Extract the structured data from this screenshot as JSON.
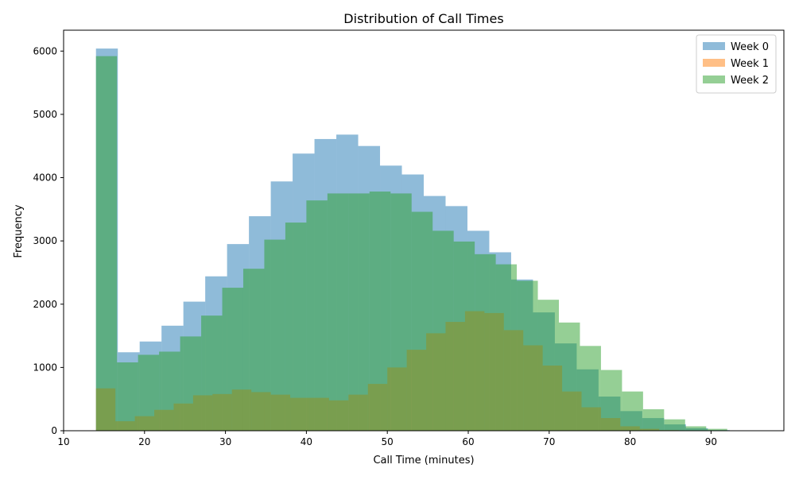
{
  "chart_data": {
    "type": "bar",
    "title": "Distribution of Call Times",
    "xlabel": "Call Time (minutes)",
    "ylabel": "Frequency",
    "xlim": [
      10,
      99
    ],
    "ylim": [
      0,
      6330
    ],
    "xticks": [
      10,
      20,
      30,
      40,
      50,
      60,
      70,
      80,
      90
    ],
    "yticks": [
      0,
      1000,
      2000,
      3000,
      4000,
      5000,
      6000
    ],
    "grid": false,
    "legend_position": "top-right",
    "series": [
      {
        "name": "Week 0",
        "color": "#1f77b4",
        "opacity": 0.5,
        "bin_edges": [
          14.0,
          16.7,
          19.4,
          22.1,
          24.8,
          27.5,
          30.2,
          32.9,
          35.6,
          38.3,
          41.0,
          43.7,
          46.4,
          49.1,
          51.8,
          54.5,
          57.2,
          59.9,
          62.6,
          65.3,
          68.0,
          70.7,
          73.4,
          76.1,
          78.8,
          81.5,
          84.2,
          86.9,
          89.6,
          92.3,
          95.0
        ],
        "values": [
          6040,
          1240,
          1410,
          1660,
          2040,
          2440,
          2950,
          3390,
          3940,
          4380,
          4610,
          4680,
          4500,
          4190,
          4050,
          3710,
          3550,
          3160,
          2820,
          2390,
          1870,
          1380,
          970,
          540,
          310,
          200,
          100,
          40,
          10,
          5
        ]
      },
      {
        "name": "Week 1",
        "color": "#ff7f0e",
        "opacity": 0.5,
        "bin_edges": [
          14.0,
          16.4,
          18.8,
          21.2,
          23.6,
          26.0,
          28.4,
          30.8,
          33.2,
          35.6,
          38.0,
          40.4,
          42.8,
          45.2,
          47.6,
          50.0,
          52.4,
          54.8,
          57.2,
          59.6,
          62.0,
          64.4,
          66.8,
          69.2,
          71.6,
          74.0,
          76.4,
          78.8,
          81.2,
          83.6,
          86.0
        ],
        "values": [
          670,
          150,
          230,
          330,
          430,
          560,
          580,
          650,
          610,
          570,
          520,
          520,
          480,
          570,
          740,
          1000,
          1280,
          1540,
          1720,
          1890,
          1860,
          1590,
          1350,
          1030,
          620,
          370,
          200,
          70,
          30,
          10
        ]
      },
      {
        "name": "Week 2",
        "color": "#2ca02c",
        "opacity": 0.5,
        "bin_edges": [
          14.0,
          16.6,
          19.2,
          21.8,
          24.4,
          27.0,
          29.6,
          32.2,
          34.8,
          37.4,
          40.0,
          42.6,
          45.2,
          47.8,
          50.4,
          53.0,
          55.6,
          58.2,
          60.8,
          63.4,
          66.0,
          68.6,
          71.2,
          73.8,
          76.4,
          79.0,
          81.6,
          84.2,
          86.8,
          89.4,
          92.0
        ],
        "values": [
          5920,
          1080,
          1200,
          1250,
          1490,
          1820,
          2260,
          2560,
          3020,
          3290,
          3640,
          3750,
          3750,
          3780,
          3750,
          3460,
          3160,
          2990,
          2790,
          2630,
          2370,
          2070,
          1710,
          1340,
          960,
          620,
          340,
          180,
          70,
          30
        ]
      }
    ]
  }
}
